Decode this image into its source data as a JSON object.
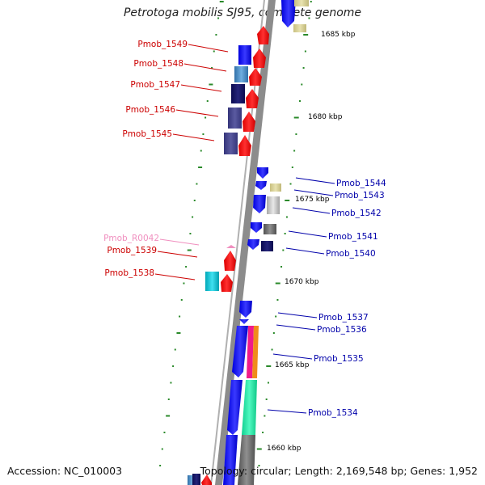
{
  "title": "Petrotoga mobilis SJ95, complete genome",
  "footer": {
    "accession": "Accession: NC_010003",
    "summary": "Topology: circular; Length: 2,169,548 bp; Genes: 1,952"
  },
  "kbp_labels": [
    "1685 kbp",
    "1680 kbp",
    "1675 kbp",
    "1670 kbp",
    "1665 kbp",
    "1660 kbp"
  ],
  "gene_labels_left": [
    {
      "label": "Pmob_1549",
      "color": "#cc0000"
    },
    {
      "label": "Pmob_1548",
      "color": "#cc0000"
    },
    {
      "label": "Pmob_1547",
      "color": "#cc0000"
    },
    {
      "label": "Pmob_1546",
      "color": "#cc0000"
    },
    {
      "label": "Pmob_1545",
      "color": "#cc0000"
    },
    {
      "label": "Pmob_R0042",
      "color": "#f08fbf"
    },
    {
      "label": "Pmob_1539",
      "color": "#cc0000"
    },
    {
      "label": "Pmob_1538",
      "color": "#cc0000"
    }
  ],
  "gene_labels_right": [
    {
      "label": "Pmob_1544",
      "color": "#0000aa"
    },
    {
      "label": "Pmob_1543",
      "color": "#0000aa"
    },
    {
      "label": "Pmob_1542",
      "color": "#0000aa"
    },
    {
      "label": "Pmob_1541",
      "color": "#0000aa"
    },
    {
      "label": "Pmob_1540",
      "color": "#0000aa"
    },
    {
      "label": "Pmob_1537",
      "color": "#0000aa"
    },
    {
      "label": "Pmob_1536",
      "color": "#0000aa"
    },
    {
      "label": "Pmob_1535",
      "color": "#0000aa"
    },
    {
      "label": "Pmob_1534",
      "color": "#0000aa"
    }
  ],
  "colors": {
    "forward_gene": "#ff1010",
    "reverse_gene": "#1a1aff",
    "backbone": "#8c8c8c",
    "tick": "#2a8a2a"
  }
}
